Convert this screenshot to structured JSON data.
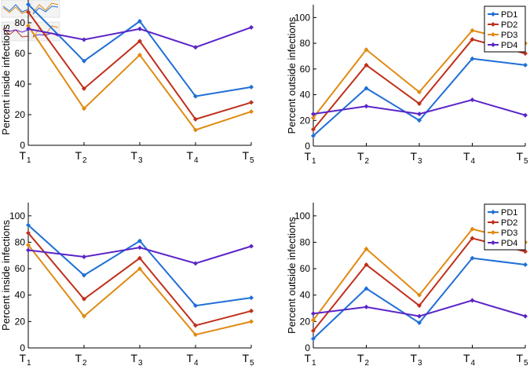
{
  "colors": {
    "PD1": "#1f6fd6",
    "PD2": "#c0301c",
    "PD3": "#e08a12",
    "PD4": "#5b24c8",
    "axis": "#000000"
  },
  "chart_data": [
    {
      "type": "line",
      "panel": "top-left",
      "ylabel": "Percent inside infections",
      "categories": [
        "T",
        "T",
        "T",
        "T",
        "T"
      ],
      "category_subscripts": [
        "1",
        "2",
        "3",
        "4",
        "5"
      ],
      "ylim": [
        0,
        100
      ],
      "yticks": [
        0,
        20,
        40,
        60,
        80
      ],
      "series": [
        {
          "name": "PD1",
          "values": [
            92,
            55,
            81,
            32,
            38
          ]
        },
        {
          "name": "PD2",
          "values": [
            87,
            37,
            68,
            17,
            28
          ]
        },
        {
          "name": "PD3",
          "values": [
            78,
            24,
            59,
            10,
            22
          ]
        },
        {
          "name": "PD4",
          "values": [
            76,
            69,
            76,
            64,
            77
          ]
        }
      ],
      "legend": null
    },
    {
      "type": "line",
      "panel": "top-right",
      "ylabel": "Percent outside infections",
      "categories": [
        "T",
        "T",
        "T",
        "T",
        "T"
      ],
      "category_subscripts": [
        "1",
        "2",
        "3",
        "4",
        "5"
      ],
      "ylim": [
        0,
        110
      ],
      "yticks": [
        0,
        20,
        40,
        60,
        80,
        100
      ],
      "series": [
        {
          "name": "PD1",
          "values": [
            8,
            45,
            20,
            68,
            63
          ]
        },
        {
          "name": "PD2",
          "values": [
            13,
            63,
            33,
            83,
            72
          ]
        },
        {
          "name": "PD3",
          "values": [
            22,
            75,
            42,
            90,
            80
          ]
        },
        {
          "name": "PD4",
          "values": [
            25,
            31,
            25,
            36,
            24
          ]
        }
      ],
      "legend": {
        "position": "top-right",
        "labels": [
          "PD1",
          "PD2",
          "PD3",
          "PD4"
        ]
      }
    },
    {
      "type": "line",
      "panel": "bottom-left",
      "ylabel": "Percent inside infections",
      "categories": [
        "T",
        "T",
        "T",
        "T",
        "T"
      ],
      "category_subscripts": [
        "1",
        "2",
        "3",
        "4",
        "5"
      ],
      "ylim": [
        0,
        110
      ],
      "yticks": [
        0,
        20,
        40,
        60,
        80,
        100
      ],
      "series": [
        {
          "name": "PD1",
          "values": [
            93,
            55,
            81,
            32,
            38
          ]
        },
        {
          "name": "PD2",
          "values": [
            87,
            37,
            68,
            17,
            28
          ]
        },
        {
          "name": "PD3",
          "values": [
            78,
            24,
            60,
            10,
            20
          ]
        },
        {
          "name": "PD4",
          "values": [
            74,
            69,
            76,
            64,
            77
          ]
        }
      ],
      "legend": null
    },
    {
      "type": "line",
      "panel": "bottom-right",
      "ylabel": "Percent outside infections",
      "categories": [
        "T",
        "T",
        "T",
        "T",
        "T"
      ],
      "category_subscripts": [
        "1",
        "2",
        "3",
        "4",
        "5"
      ],
      "ylim": [
        0,
        110
      ],
      "yticks": [
        0,
        20,
        40,
        60,
        80,
        100
      ],
      "series": [
        {
          "name": "PD1",
          "values": [
            7,
            45,
            19,
            68,
            63
          ]
        },
        {
          "name": "PD2",
          "values": [
            13,
            63,
            32,
            83,
            73
          ]
        },
        {
          "name": "PD3",
          "values": [
            21,
            75,
            40,
            90,
            80
          ]
        },
        {
          "name": "PD4",
          "values": [
            26,
            31,
            24,
            36,
            24
          ]
        }
      ],
      "legend": {
        "position": "top-right",
        "labels": [
          "PD1",
          "PD2",
          "PD3",
          "PD4"
        ]
      }
    }
  ]
}
